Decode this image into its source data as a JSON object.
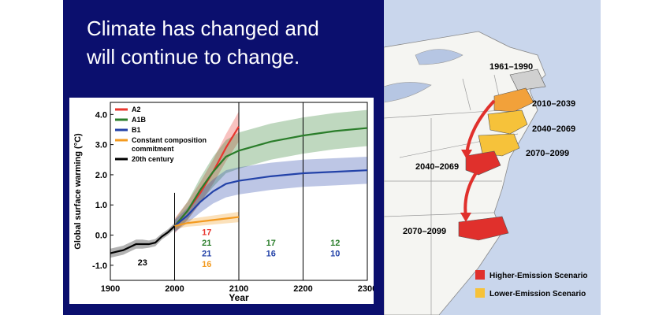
{
  "slide": {
    "title_line1": "Climate has changed and",
    "title_line2": "will continue to change."
  },
  "chart_data": {
    "type": "line",
    "xlabel": "Year",
    "ylabel": "Global surface warming (°C)",
    "xlim": [
      1900,
      2300
    ],
    "ylim": [
      -1.5,
      4.4
    ],
    "x_ticks": [
      "1900",
      "2000",
      "2100",
      "2200",
      "2300"
    ],
    "y_ticks": [
      "-1.0",
      "0.0",
      "1.0",
      "2.0",
      "3.0",
      "4.0"
    ],
    "vertical_lines": [
      2000,
      2100,
      2200
    ],
    "legend_position": "top-left",
    "series": [
      {
        "name": "A2",
        "color": "#e8362e",
        "x": [
          2000,
          2020,
          2040,
          2060,
          2080,
          2100
        ],
        "y": [
          0.3,
          0.8,
          1.4,
          2.1,
          2.9,
          3.6
        ],
        "band": [
          0.25,
          0.3,
          0.35,
          0.4,
          0.45,
          0.5
        ]
      },
      {
        "name": "A1B",
        "color": "#2a7d2a",
        "x": [
          2000,
          2020,
          2040,
          2060,
          2080,
          2100,
          2150,
          2200,
          2250,
          2300
        ],
        "y": [
          0.3,
          0.8,
          1.5,
          2.1,
          2.6,
          2.8,
          3.1,
          3.3,
          3.45,
          3.55
        ],
        "band": [
          0.2,
          0.3,
          0.4,
          0.5,
          0.55,
          0.6,
          0.6,
          0.6,
          0.6,
          0.6
        ]
      },
      {
        "name": "B1",
        "color": "#2342a8",
        "x": [
          2000,
          2020,
          2040,
          2060,
          2080,
          2100,
          2150,
          2200,
          2250,
          2300
        ],
        "y": [
          0.3,
          0.65,
          1.1,
          1.45,
          1.7,
          1.8,
          1.95,
          2.05,
          2.1,
          2.15
        ],
        "band": [
          0.2,
          0.25,
          0.35,
          0.4,
          0.45,
          0.45,
          0.45,
          0.45,
          0.45,
          0.45
        ]
      },
      {
        "name": "Constant composition commitment",
        "color": "#f39a1f",
        "x": [
          2000,
          2020,
          2040,
          2060,
          2080,
          2100
        ],
        "y": [
          0.3,
          0.4,
          0.45,
          0.5,
          0.55,
          0.6
        ],
        "band": [
          0.1,
          0.12,
          0.14,
          0.15,
          0.16,
          0.17
        ]
      },
      {
        "name": "20th century",
        "color": "#000000",
        "x": [
          1900,
          1910,
          1920,
          1930,
          1940,
          1950,
          1960,
          1970,
          1980,
          1990,
          2000
        ],
        "y": [
          -0.6,
          -0.55,
          -0.5,
          -0.4,
          -0.3,
          -0.3,
          -0.3,
          -0.25,
          -0.05,
          0.1,
          0.3
        ],
        "band": [
          0.15,
          0.15,
          0.15,
          0.15,
          0.15,
          0.15,
          0.12,
          0.12,
          0.1,
          0.1,
          0.1
        ]
      }
    ],
    "annotations": [
      {
        "text": "23",
        "x": 1950,
        "y": -1.0,
        "color": "#000000"
      },
      {
        "text": "17",
        "x": 2050,
        "y": 0.0,
        "color": "#e8362e"
      },
      {
        "text": "21",
        "x": 2050,
        "y": -0.35,
        "color": "#2a7d2a"
      },
      {
        "text": "21",
        "x": 2050,
        "y": -0.7,
        "color": "#2342a8"
      },
      {
        "text": "16",
        "x": 2050,
        "y": -1.05,
        "color": "#f39a1f"
      },
      {
        "text": "17",
        "x": 2150,
        "y": -0.35,
        "color": "#2a7d2a"
      },
      {
        "text": "16",
        "x": 2150,
        "y": -0.7,
        "color": "#2342a8"
      },
      {
        "text": "12",
        "x": 2250,
        "y": -0.35,
        "color": "#2a7d2a"
      },
      {
        "text": "10",
        "x": 2250,
        "y": -0.7,
        "color": "#2342a8"
      }
    ]
  },
  "map": {
    "labels": {
      "p1961": "1961–1990",
      "p2010": "2010–2039",
      "p2040": "2040–2069",
      "p2070": "2070–2099",
      "p2040_high": "2040–2069",
      "p2070_high": "2070–2099"
    },
    "legend": [
      {
        "label": "Higher-Emission Scenario",
        "color": "#e0302c"
      },
      {
        "label": "Lower-Emission Scenario",
        "color": "#f6c23a"
      }
    ]
  }
}
